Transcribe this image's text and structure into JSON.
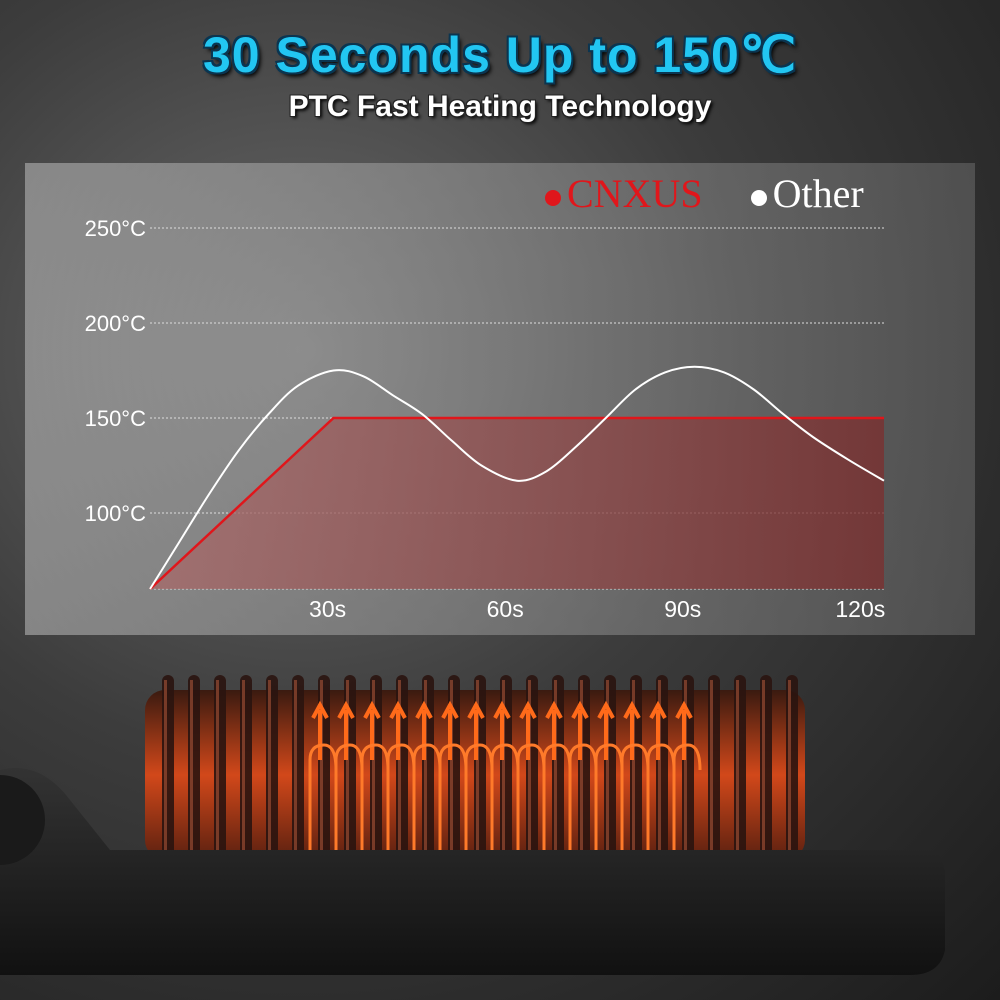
{
  "header": {
    "title": "30 Seconds Up to 150℃",
    "subtitle": "PTC Fast Heating Technology"
  },
  "colors": {
    "title": "#22c6f2",
    "cnxus": "#e0161b",
    "other": "#ffffff",
    "glow": "#ff6a1a"
  },
  "chart_data": {
    "type": "line",
    "title": "",
    "xlabel": "",
    "ylabel": "",
    "x_ticks": [
      "30s",
      "60s",
      "90s",
      "120s"
    ],
    "x_tick_values": [
      30,
      60,
      90,
      120
    ],
    "y_ticks": [
      "100°C",
      "150°C",
      "200°C",
      "250°C"
    ],
    "y_tick_values": [
      100,
      150,
      200,
      250
    ],
    "xlim": [
      0,
      124
    ],
    "ylim": [
      60,
      250
    ],
    "grid": "horizontal dashed",
    "legend": "top-right",
    "series": [
      {
        "name": "CNXUS",
        "color": "#e0161b",
        "fill": true,
        "points": [
          [
            0,
            60
          ],
          [
            31,
            150
          ],
          [
            124,
            150
          ]
        ]
      },
      {
        "name": "Other",
        "color": "#ffffff",
        "fill": false,
        "points": [
          [
            0,
            60
          ],
          [
            5,
            85
          ],
          [
            10,
            110
          ],
          [
            15,
            133
          ],
          [
            20,
            152
          ],
          [
            25,
            167
          ],
          [
            31,
            175
          ],
          [
            36,
            172
          ],
          [
            41,
            162
          ],
          [
            46,
            152
          ],
          [
            51,
            138
          ],
          [
            56,
            125
          ],
          [
            62,
            117
          ],
          [
            67,
            122
          ],
          [
            72,
            135
          ],
          [
            77,
            150
          ],
          [
            82,
            165
          ],
          [
            87,
            174
          ],
          [
            92,
            177
          ],
          [
            97,
            174
          ],
          [
            102,
            165
          ],
          [
            107,
            152
          ],
          [
            112,
            140
          ],
          [
            118,
            128
          ],
          [
            124,
            117
          ]
        ]
      }
    ]
  }
}
